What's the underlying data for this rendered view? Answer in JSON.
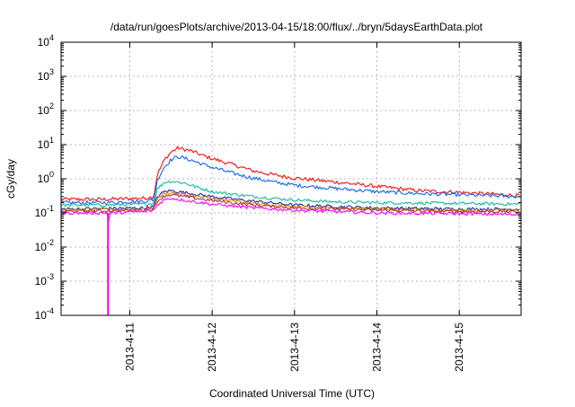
{
  "chart_data": {
    "type": "line",
    "title": "/data/run/goesPlots/archive/2013-04-15/18:00/flux/../bryn/5daysEarthData.plot",
    "xlabel": "Coordinated Universal Time (UTC)",
    "ylabel": "cGy/day",
    "y_scale": "log",
    "ylim": [
      0.0001,
      10000
    ],
    "xlim": [
      "2013-04-10 04:00",
      "2013-04-15 18:00"
    ],
    "grid": true,
    "legend": "none",
    "y_ticks": [
      {
        "value": 0.0001,
        "base": "10",
        "exp": "-4"
      },
      {
        "value": 0.001,
        "base": "10",
        "exp": "-3"
      },
      {
        "value": 0.01,
        "base": "10",
        "exp": "-2"
      },
      {
        "value": 0.1,
        "base": "10",
        "exp": "-1"
      },
      {
        "value": 1,
        "base": "10",
        "exp": "0"
      },
      {
        "value": 10,
        "base": "10",
        "exp": "1"
      },
      {
        "value": 100,
        "base": "10",
        "exp": "2"
      },
      {
        "value": 1000,
        "base": "10",
        "exp": "3"
      },
      {
        "value": 10000,
        "base": "10",
        "exp": "4"
      }
    ],
    "x_ticks": [
      {
        "value": "2013-04-11 00:00",
        "label": "2013-4-11"
      },
      {
        "value": "2013-04-12 00:00",
        "label": "2013-4-12"
      },
      {
        "value": "2013-04-13 00:00",
        "label": "2013-4-13"
      },
      {
        "value": "2013-04-14 00:00",
        "label": "2013-4-14"
      },
      {
        "value": "2013-04-15 00:00",
        "label": "2013-4-15"
      }
    ],
    "series": [
      {
        "color": "#ee1111",
        "x": [
          "2013-04-10 04:00",
          "2013-04-10 16:00",
          "2013-04-11 04:00",
          "2013-04-11 07:00",
          "2013-04-11 08:00",
          "2013-04-11 10:00",
          "2013-04-11 12:00",
          "2013-04-11 14:00",
          "2013-04-11 18:00",
          "2013-04-11 22:00",
          "2013-04-12 06:00",
          "2013-04-12 12:00",
          "2013-04-12 18:00",
          "2013-04-13 00:00",
          "2013-04-13 12:00",
          "2013-04-14 00:00",
          "2013-04-14 12:00",
          "2013-04-15 00:00",
          "2013-04-15 18:00"
        ],
        "y": [
          0.25,
          0.25,
          0.27,
          0.3,
          1.3,
          3.5,
          6,
          8,
          6.5,
          4.5,
          2.6,
          1.7,
          1.3,
          1.05,
          0.8,
          0.6,
          0.45,
          0.4,
          0.32
        ]
      },
      {
        "color": "#1166ee",
        "x": [
          "2013-04-10 04:00",
          "2013-04-10 16:00",
          "2013-04-11 04:00",
          "2013-04-11 07:00",
          "2013-04-11 08:00",
          "2013-04-11 10:00",
          "2013-04-11 12:00",
          "2013-04-11 14:00",
          "2013-04-11 18:00",
          "2013-04-11 22:00",
          "2013-04-12 06:00",
          "2013-04-12 12:00",
          "2013-04-12 18:00",
          "2013-04-13 00:00",
          "2013-04-13 12:00",
          "2013-04-14 00:00",
          "2013-04-14 12:00",
          "2013-04-15 00:00",
          "2013-04-15 18:00"
        ],
        "y": [
          0.2,
          0.2,
          0.22,
          0.24,
          0.9,
          2.2,
          3.6,
          4.5,
          3.5,
          2.5,
          1.45,
          1.05,
          0.8,
          0.65,
          0.52,
          0.42,
          0.37,
          0.34,
          0.3
        ]
      },
      {
        "color": "#11bb99",
        "x": [
          "2013-04-10 04:00",
          "2013-04-10 16:00",
          "2013-04-11 04:00",
          "2013-04-11 07:00",
          "2013-04-11 08:00",
          "2013-04-11 10:00",
          "2013-04-11 12:00",
          "2013-04-11 16:00",
          "2013-04-11 20:00",
          "2013-04-12 00:00",
          "2013-04-12 12:00",
          "2013-04-13 00:00",
          "2013-04-13 12:00",
          "2013-04-14 00:00",
          "2013-04-15 00:00",
          "2013-04-15 18:00"
        ],
        "y": [
          0.17,
          0.17,
          0.18,
          0.19,
          0.5,
          0.78,
          0.85,
          0.75,
          0.55,
          0.42,
          0.3,
          0.24,
          0.21,
          0.2,
          0.19,
          0.18
        ]
      },
      {
        "color": "#2222aa",
        "x": [
          "2013-04-10 04:00",
          "2013-04-11 04:00",
          "2013-04-11 07:00",
          "2013-04-11 08:00",
          "2013-04-11 10:00",
          "2013-04-11 12:00",
          "2013-04-11 18:00",
          "2013-04-12 00:00",
          "2013-04-12 12:00",
          "2013-04-13 00:00",
          "2013-04-14 00:00",
          "2013-04-15 00:00",
          "2013-04-15 18:00"
        ],
        "y": [
          0.13,
          0.14,
          0.15,
          0.3,
          0.42,
          0.45,
          0.37,
          0.3,
          0.22,
          0.17,
          0.14,
          0.13,
          0.13
        ]
      },
      {
        "color": "#cc8800",
        "x": [
          "2013-04-10 04:00",
          "2013-04-11 04:00",
          "2013-04-11 07:00",
          "2013-04-11 08:00",
          "2013-04-11 10:00",
          "2013-04-11 12:00",
          "2013-04-11 18:00",
          "2013-04-12 00:00",
          "2013-04-12 12:00",
          "2013-04-13 00:00",
          "2013-04-14 00:00",
          "2013-04-15 00:00",
          "2013-04-15 18:00"
        ],
        "y": [
          0.12,
          0.13,
          0.14,
          0.26,
          0.36,
          0.39,
          0.32,
          0.26,
          0.19,
          0.15,
          0.13,
          0.12,
          0.12
        ]
      },
      {
        "color": "#aa3344",
        "x": [
          "2013-04-10 04:00",
          "2013-04-11 04:00",
          "2013-04-11 07:00",
          "2013-04-11 08:00",
          "2013-04-11 10:00",
          "2013-04-11 12:00",
          "2013-04-11 18:00",
          "2013-04-12 00:00",
          "2013-04-12 12:00",
          "2013-04-13 00:00",
          "2013-04-14 00:00",
          "2013-04-15 00:00",
          "2013-04-15 18:00"
        ],
        "y": [
          0.11,
          0.12,
          0.13,
          0.22,
          0.31,
          0.34,
          0.28,
          0.23,
          0.17,
          0.14,
          0.12,
          0.11,
          0.11
        ]
      },
      {
        "color": "#ff00ff",
        "x": [
          "2013-04-10 04:00",
          "2013-04-10 16:00",
          "2013-04-10 17:30",
          "2013-04-10 17:40",
          "2013-04-10 17:50",
          "2013-04-10 19:00",
          "2013-04-11 04:00",
          "2013-04-11 07:00",
          "2013-04-11 08:00",
          "2013-04-11 10:00",
          "2013-04-11 12:00",
          "2013-04-11 18:00",
          "2013-04-12 00:00",
          "2013-04-12 12:00",
          "2013-04-13 00:00",
          "2013-04-14 00:00",
          "2013-04-15 00:00",
          "2013-04-15 18:00"
        ],
        "y": [
          0.1,
          0.1,
          0.1,
          0.0001,
          0.1,
          0.1,
          0.11,
          0.12,
          0.17,
          0.24,
          0.27,
          0.22,
          0.18,
          0.14,
          0.12,
          0.1,
          0.095,
          0.09
        ]
      }
    ]
  }
}
